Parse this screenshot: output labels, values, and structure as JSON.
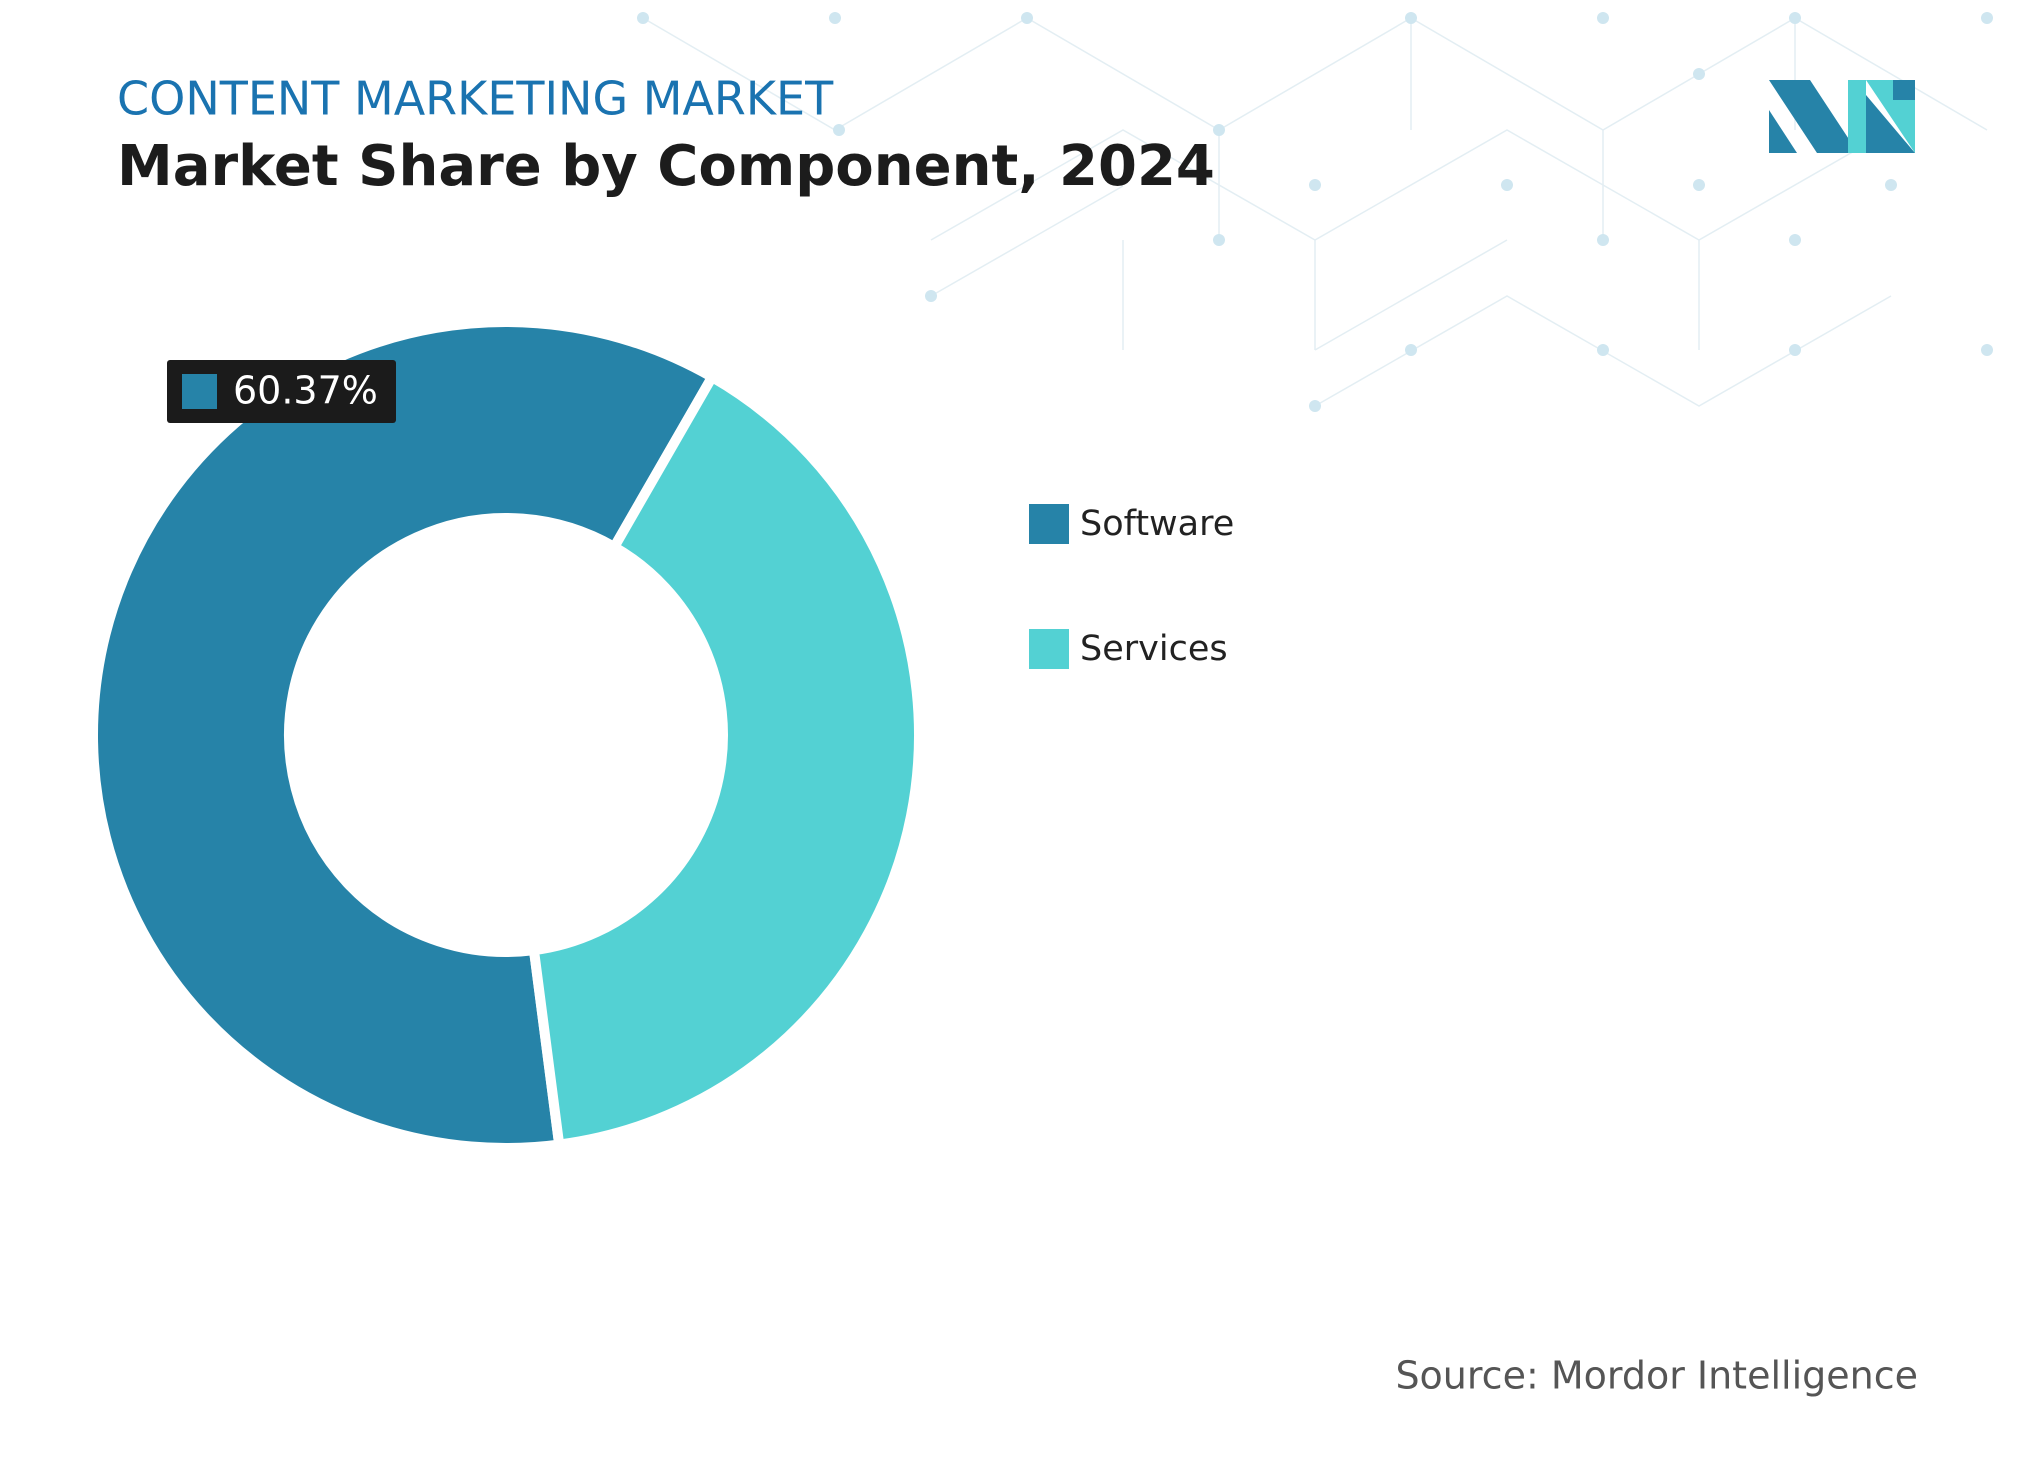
{
  "chart_data": {
    "type": "donut",
    "title": "CONTENT MARKETING MARKET",
    "subtitle": "Market Share by Component, 2024",
    "categories": [
      "Software",
      "Services"
    ],
    "values": [
      60.37,
      39.63
    ],
    "value_labels": [
      "60.37%",
      null
    ],
    "colors": [
      "#2683a8",
      "#53d1d3"
    ],
    "source": "Source: Mordor Intelligence"
  }
}
